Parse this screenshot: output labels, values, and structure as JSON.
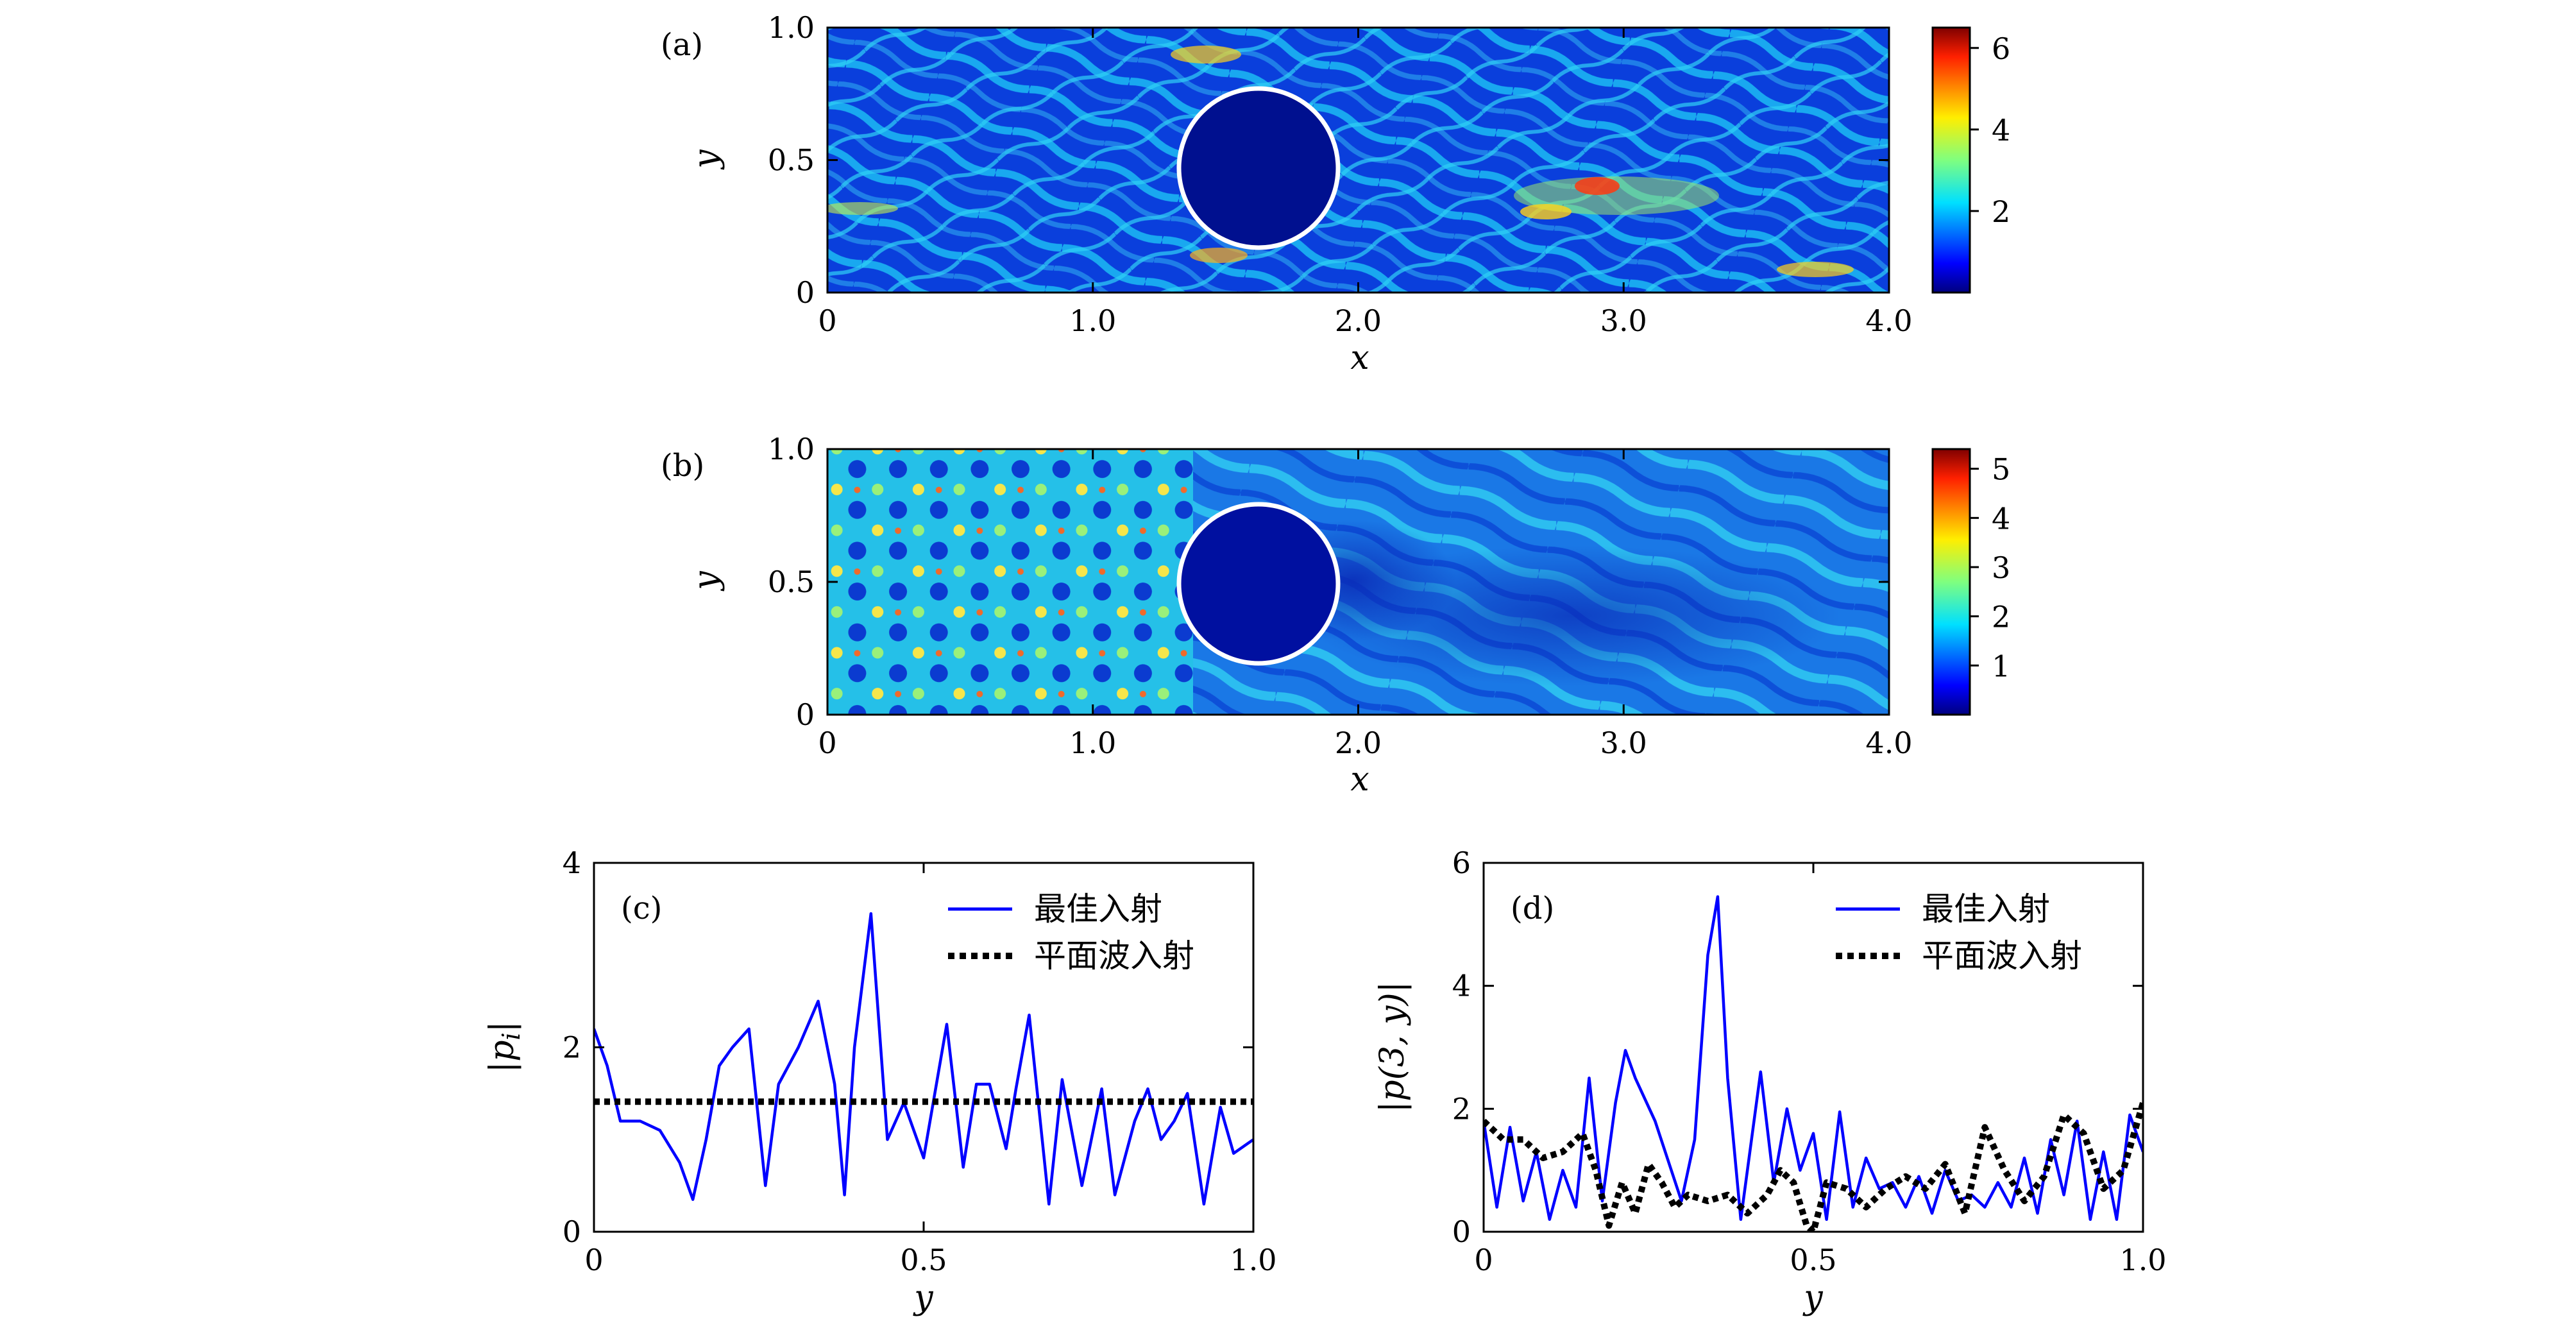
{
  "chart_data": [
    {
      "type": "heatmap",
      "panel": "(a)",
      "xlabel": "x",
      "ylabel": "y",
      "xlim": [
        0,
        4.0
      ],
      "ylim": [
        0,
        1.0
      ],
      "xticks": [
        "0",
        "1.0",
        "2.0",
        "3.0",
        "4.0"
      ],
      "yticks": [
        "0",
        "0.5",
        "1.0"
      ],
      "colorbar": {
        "range": [
          0,
          6.5
        ],
        "ticks": [
          "2",
          "4",
          "6"
        ],
        "tick_values": [
          2,
          4,
          6
        ]
      },
      "scatterer": {
        "shape": "circle",
        "center": [
          1.6,
          0.45
        ],
        "radius": 0.3
      },
      "description_hint": "scattered field, moderate intensity with hot spots near x≈3.0, y≈0.35"
    },
    {
      "type": "heatmap",
      "panel": "(b)",
      "xlabel": "x",
      "ylabel": "y",
      "xlim": [
        0,
        4.0
      ],
      "ylim": [
        0,
        1.0
      ],
      "xticks": [
        "0",
        "1.0",
        "2.0",
        "3.0",
        "4.0"
      ],
      "yticks": [
        "0",
        "0.5",
        "1.0"
      ],
      "colorbar": {
        "range": [
          0,
          5.4
        ],
        "ticks": [
          "1",
          "2",
          "3",
          "4",
          "5"
        ],
        "tick_values": [
          1,
          2,
          3,
          4,
          5
        ]
      },
      "scatterer": {
        "shape": "circle",
        "center": [
          1.6,
          0.45
        ],
        "radius": 0.3
      },
      "description_hint": "strong interference pattern for x<1.5, weak field behind scatterer"
    },
    {
      "type": "line",
      "panel": "(c)",
      "xlabel": "y",
      "ylabel": "|p_i|",
      "xlim": [
        0,
        1.0
      ],
      "ylim": [
        0,
        4
      ],
      "xticks": [
        "0",
        "0.5",
        "1.0"
      ],
      "yticks": [
        "0",
        "2",
        "4"
      ],
      "legend_position": "top-right",
      "series": [
        {
          "name": "最佳入射",
          "style": "solid",
          "color": "#0000ff",
          "x": [
            0.0,
            0.02,
            0.04,
            0.07,
            0.1,
            0.13,
            0.15,
            0.17,
            0.19,
            0.21,
            0.235,
            0.26,
            0.28,
            0.31,
            0.34,
            0.365,
            0.38,
            0.395,
            0.42,
            0.445,
            0.47,
            0.5,
            0.535,
            0.56,
            0.58,
            0.6,
            0.625,
            0.64,
            0.66,
            0.69,
            0.71,
            0.74,
            0.77,
            0.79,
            0.82,
            0.84,
            0.86,
            0.88,
            0.9,
            0.925,
            0.95,
            0.97,
            1.0
          ],
          "y": [
            2.2,
            1.8,
            1.2,
            1.2,
            1.1,
            0.75,
            0.35,
            1.0,
            1.8,
            2.0,
            2.2,
            0.5,
            1.6,
            2.0,
            2.5,
            1.6,
            0.4,
            2.0,
            3.45,
            1.0,
            1.4,
            0.8,
            2.25,
            0.7,
            1.6,
            1.6,
            0.9,
            1.55,
            2.35,
            0.3,
            1.65,
            0.5,
            1.55,
            0.4,
            1.2,
            1.55,
            1.0,
            1.2,
            1.5,
            0.3,
            1.35,
            0.85,
            1.0
          ]
        },
        {
          "name": "平面波入射",
          "style": "dotted",
          "color": "#000000",
          "x": [
            0.0,
            1.0
          ],
          "y": [
            1.41,
            1.41
          ]
        }
      ]
    },
    {
      "type": "line",
      "panel": "(d)",
      "xlabel": "y",
      "ylabel": "|p(3, y)|",
      "xlim": [
        0,
        1.0
      ],
      "ylim": [
        0,
        6
      ],
      "xticks": [
        "0",
        "0.5",
        "1.0"
      ],
      "yticks": [
        "0",
        "2",
        "4",
        "6"
      ],
      "legend_position": "top-right",
      "series": [
        {
          "name": "最佳入射",
          "style": "solid",
          "color": "#0000ff",
          "x": [
            0.0,
            0.02,
            0.04,
            0.06,
            0.08,
            0.1,
            0.12,
            0.14,
            0.16,
            0.18,
            0.2,
            0.215,
            0.23,
            0.26,
            0.3,
            0.32,
            0.34,
            0.355,
            0.37,
            0.39,
            0.4,
            0.42,
            0.44,
            0.46,
            0.48,
            0.5,
            0.52,
            0.54,
            0.56,
            0.58,
            0.6,
            0.62,
            0.64,
            0.66,
            0.68,
            0.7,
            0.72,
            0.74,
            0.76,
            0.78,
            0.8,
            0.82,
            0.84,
            0.86,
            0.88,
            0.9,
            0.92,
            0.94,
            0.96,
            0.98,
            1.0
          ],
          "y": [
            1.8,
            0.4,
            1.7,
            0.5,
            1.3,
            0.2,
            1.0,
            0.4,
            2.5,
            0.5,
            2.1,
            2.95,
            2.5,
            1.8,
            0.5,
            1.5,
            4.5,
            5.45,
            2.5,
            0.2,
            1.0,
            2.6,
            0.8,
            2.0,
            1.0,
            1.6,
            0.2,
            1.95,
            0.4,
            1.2,
            0.7,
            0.8,
            0.4,
            0.9,
            0.3,
            1.0,
            0.5,
            0.6,
            0.4,
            0.8,
            0.4,
            1.2,
            0.3,
            1.5,
            0.6,
            1.8,
            0.2,
            1.3,
            0.2,
            1.9,
            1.3
          ]
        },
        {
          "name": "平面波入射",
          "style": "dotted",
          "color": "#000000",
          "x": [
            0.0,
            0.03,
            0.06,
            0.09,
            0.12,
            0.15,
            0.17,
            0.19,
            0.21,
            0.23,
            0.25,
            0.27,
            0.29,
            0.31,
            0.34,
            0.37,
            0.4,
            0.43,
            0.45,
            0.47,
            0.49,
            0.5,
            0.52,
            0.55,
            0.58,
            0.61,
            0.64,
            0.67,
            0.7,
            0.73,
            0.76,
            0.79,
            0.82,
            0.85,
            0.88,
            0.91,
            0.94,
            0.97,
            1.0
          ],
          "y": [
            1.8,
            1.5,
            1.5,
            1.2,
            1.3,
            1.6,
            1.0,
            0.1,
            0.8,
            0.3,
            1.1,
            0.8,
            0.4,
            0.6,
            0.5,
            0.6,
            0.3,
            0.6,
            1.0,
            0.8,
            0.1,
            0.0,
            0.8,
            0.7,
            0.4,
            0.7,
            0.9,
            0.7,
            1.1,
            0.3,
            1.7,
            1.0,
            0.5,
            0.9,
            1.9,
            1.6,
            0.7,
            1.0,
            2.1
          ]
        }
      ]
    }
  ]
}
